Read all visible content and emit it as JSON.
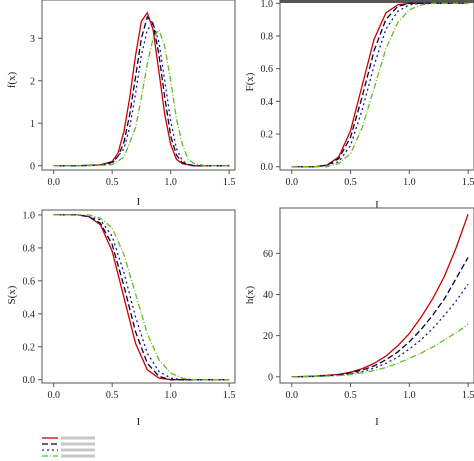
{
  "chart_data": [
    {
      "type": "line",
      "panel": "top-left",
      "xlabel": "I",
      "ylabel": "f(x)",
      "xlim": [
        -0.1,
        1.55
      ],
      "ylim": [
        -0.1,
        3.9
      ],
      "xticks": [
        "0.0",
        "0.5",
        "1.0",
        "1.5"
      ],
      "yticks": [
        "0",
        "1",
        "2",
        "3"
      ],
      "series": [
        {
          "color": "#cc0000",
          "dash": "",
          "x": [
            0.0,
            0.2,
            0.4,
            0.5,
            0.55,
            0.6,
            0.65,
            0.7,
            0.75,
            0.8,
            0.85,
            0.9,
            0.95,
            1.0,
            1.05,
            1.1,
            1.2,
            1.5
          ],
          "y": [
            0.0,
            0.0,
            0.02,
            0.1,
            0.3,
            0.8,
            1.6,
            2.6,
            3.4,
            3.6,
            3.2,
            2.2,
            1.2,
            0.5,
            0.15,
            0.05,
            0.0,
            0.0
          ]
        },
        {
          "color": "#000044",
          "dash": "6,3",
          "x": [
            0.0,
            0.2,
            0.4,
            0.5,
            0.55,
            0.6,
            0.65,
            0.7,
            0.75,
            0.8,
            0.85,
            0.9,
            0.95,
            1.0,
            1.05,
            1.1,
            1.2,
            1.5
          ],
          "y": [
            0.0,
            0.0,
            0.02,
            0.08,
            0.22,
            0.55,
            1.2,
            2.1,
            3.0,
            3.5,
            3.35,
            2.6,
            1.6,
            0.7,
            0.25,
            0.07,
            0.0,
            0.0
          ]
        },
        {
          "color": "#1a1a8a",
          "dash": "2,3",
          "x": [
            0.0,
            0.2,
            0.4,
            0.5,
            0.6,
            0.65,
            0.7,
            0.75,
            0.8,
            0.85,
            0.9,
            0.95,
            1.0,
            1.05,
            1.1,
            1.15,
            1.2,
            1.5
          ],
          "y": [
            0.0,
            0.0,
            0.01,
            0.05,
            0.4,
            0.9,
            1.7,
            2.6,
            3.2,
            3.35,
            2.9,
            2.0,
            1.05,
            0.4,
            0.12,
            0.03,
            0.0,
            0.0
          ]
        },
        {
          "color": "#66bb22",
          "dash": "6,2,1,2",
          "x": [
            0.0,
            0.2,
            0.4,
            0.5,
            0.6,
            0.7,
            0.75,
            0.8,
            0.85,
            0.9,
            0.95,
            1.0,
            1.05,
            1.1,
            1.15,
            1.2,
            1.3,
            1.5
          ],
          "y": [
            0.0,
            0.0,
            0.01,
            0.03,
            0.2,
            0.9,
            1.6,
            2.4,
            3.0,
            3.2,
            2.8,
            2.0,
            1.1,
            0.5,
            0.15,
            0.05,
            0.0,
            0.0
          ]
        }
      ]
    },
    {
      "type": "line",
      "panel": "top-right",
      "xlabel": "I",
      "ylabel": "F(x)",
      "xlim": [
        -0.1,
        1.55
      ],
      "ylim": [
        -0.02,
        1.02
      ],
      "xticks": [
        "0.0",
        "0.5",
        "1.0",
        "1.5"
      ],
      "yticks": [
        "0.0",
        "0.2",
        "0.4",
        "0.6",
        "0.8",
        "1.0"
      ],
      "series": [
        {
          "color": "#cc0000",
          "dash": "",
          "x": [
            0.0,
            0.2,
            0.3,
            0.4,
            0.5,
            0.6,
            0.7,
            0.8,
            0.9,
            1.0,
            1.1,
            1.5
          ],
          "y": [
            0.0,
            0.0,
            0.01,
            0.06,
            0.22,
            0.5,
            0.78,
            0.94,
            0.99,
            1.0,
            1.0,
            1.0
          ]
        },
        {
          "color": "#000044",
          "dash": "6,3",
          "x": [
            0.0,
            0.2,
            0.3,
            0.4,
            0.5,
            0.6,
            0.7,
            0.8,
            0.9,
            1.0,
            1.1,
            1.5
          ],
          "y": [
            0.0,
            0.0,
            0.01,
            0.05,
            0.18,
            0.43,
            0.71,
            0.9,
            0.98,
            1.0,
            1.0,
            1.0
          ]
        },
        {
          "color": "#1a1a8a",
          "dash": "2,3",
          "x": [
            0.0,
            0.2,
            0.3,
            0.4,
            0.5,
            0.6,
            0.7,
            0.8,
            0.9,
            1.0,
            1.1,
            1.2,
            1.5
          ],
          "y": [
            0.0,
            0.0,
            0.01,
            0.03,
            0.13,
            0.35,
            0.62,
            0.84,
            0.95,
            0.99,
            1.0,
            1.0,
            1.0
          ]
        },
        {
          "color": "#66bb22",
          "dash": "6,2,1,2",
          "x": [
            0.0,
            0.2,
            0.3,
            0.4,
            0.5,
            0.6,
            0.7,
            0.8,
            0.9,
            1.0,
            1.1,
            1.2,
            1.3,
            1.5
          ],
          "y": [
            0.0,
            0.0,
            0.0,
            0.02,
            0.08,
            0.24,
            0.48,
            0.72,
            0.88,
            0.96,
            0.99,
            1.0,
            1.0,
            1.0
          ]
        }
      ]
    },
    {
      "type": "line",
      "panel": "bottom-left",
      "xlabel": "I",
      "ylabel": "S(x)",
      "xlim": [
        -0.1,
        1.55
      ],
      "ylim": [
        -0.02,
        1.03
      ],
      "xticks": [
        "0.0",
        "0.5",
        "1.0",
        "1.5"
      ],
      "yticks": [
        "0.0",
        "0.2",
        "0.4",
        "0.6",
        "0.8",
        "1.0"
      ],
      "series": [
        {
          "color": "#cc0000",
          "dash": "",
          "x": [
            0.0,
            0.2,
            0.3,
            0.4,
            0.5,
            0.6,
            0.7,
            0.8,
            0.9,
            1.0,
            1.1,
            1.5
          ],
          "y": [
            1.0,
            1.0,
            0.99,
            0.94,
            0.78,
            0.5,
            0.22,
            0.06,
            0.01,
            0.0,
            0.0,
            0.0
          ]
        },
        {
          "color": "#000044",
          "dash": "6,3",
          "x": [
            0.0,
            0.2,
            0.3,
            0.4,
            0.5,
            0.6,
            0.7,
            0.8,
            0.9,
            1.0,
            1.1,
            1.5
          ],
          "y": [
            1.0,
            1.0,
            0.99,
            0.95,
            0.82,
            0.57,
            0.29,
            0.1,
            0.02,
            0.0,
            0.0,
            0.0
          ]
        },
        {
          "color": "#1a1a8a",
          "dash": "2,3",
          "x": [
            0.0,
            0.2,
            0.3,
            0.4,
            0.5,
            0.6,
            0.7,
            0.8,
            0.9,
            1.0,
            1.1,
            1.2,
            1.5
          ],
          "y": [
            1.0,
            1.0,
            0.99,
            0.97,
            0.87,
            0.65,
            0.38,
            0.16,
            0.05,
            0.01,
            0.0,
            0.0,
            0.0
          ]
        },
        {
          "color": "#66bb22",
          "dash": "6,2,1,2",
          "x": [
            0.0,
            0.2,
            0.3,
            0.4,
            0.5,
            0.6,
            0.7,
            0.8,
            0.9,
            1.0,
            1.1,
            1.2,
            1.3,
            1.5
          ],
          "y": [
            1.0,
            1.0,
            1.0,
            0.98,
            0.92,
            0.76,
            0.52,
            0.28,
            0.12,
            0.04,
            0.01,
            0.0,
            0.0,
            0.0
          ]
        }
      ]
    },
    {
      "type": "line",
      "panel": "bottom-right",
      "xlabel": "I",
      "ylabel": "h(x)",
      "xlim": [
        -0.1,
        1.55
      ],
      "ylim": [
        -3,
        82
      ],
      "xticks": [
        "0.0",
        "0.5",
        "1.0",
        "1.5"
      ],
      "yticks": [
        "0",
        "20",
        "40",
        "60"
      ],
      "series": [
        {
          "color": "#cc0000",
          "dash": "",
          "x": [
            0.0,
            0.2,
            0.4,
            0.5,
            0.6,
            0.7,
            0.8,
            0.9,
            1.0,
            1.1,
            1.2,
            1.3,
            1.4,
            1.5
          ],
          "y": [
            0.0,
            0.3,
            1.2,
            2.3,
            4.0,
            6.5,
            10.0,
            15.0,
            21.0,
            29.0,
            38.0,
            49.0,
            63.0,
            79.0
          ]
        },
        {
          "color": "#000044",
          "dash": "6,3",
          "x": [
            0.0,
            0.2,
            0.4,
            0.5,
            0.6,
            0.7,
            0.8,
            0.9,
            1.0,
            1.1,
            1.2,
            1.3,
            1.4,
            1.5
          ],
          "y": [
            0.0,
            0.25,
            1.0,
            1.9,
            3.3,
            5.3,
            8.2,
            12.0,
            17.0,
            23.0,
            30.0,
            38.0,
            48.0,
            58.0
          ]
        },
        {
          "color": "#1a1a8a",
          "dash": "2,3",
          "x": [
            0.0,
            0.2,
            0.4,
            0.5,
            0.6,
            0.7,
            0.8,
            0.9,
            1.0,
            1.1,
            1.2,
            1.3,
            1.4,
            1.5
          ],
          "y": [
            0.0,
            0.2,
            0.8,
            1.5,
            2.6,
            4.2,
            6.5,
            9.5,
            13.5,
            18.0,
            23.5,
            30.0,
            37.0,
            45.0
          ]
        },
        {
          "color": "#66bb22",
          "dash": "6,2,1,2",
          "x": [
            0.0,
            0.2,
            0.4,
            0.5,
            0.6,
            0.7,
            0.8,
            0.9,
            1.0,
            1.1,
            1.2,
            1.3,
            1.4,
            1.5
          ],
          "y": [
            0.0,
            0.15,
            0.6,
            1.1,
            1.9,
            3.0,
            4.5,
            6.5,
            9.0,
            11.5,
            14.5,
            18.0,
            21.5,
            25.5
          ]
        }
      ]
    }
  ]
}
